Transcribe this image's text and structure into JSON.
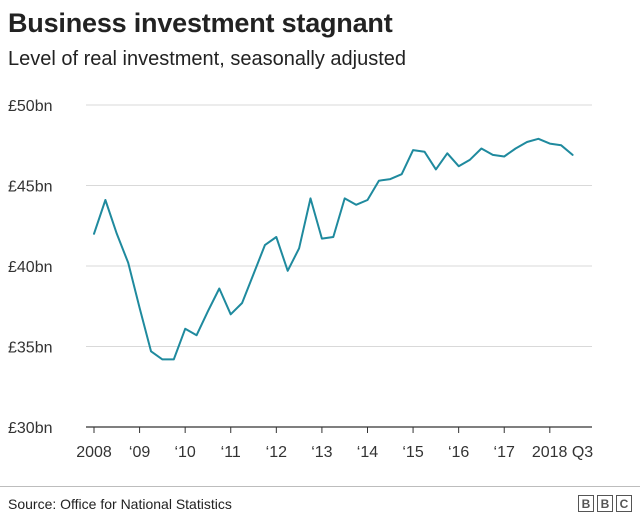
{
  "title": "Business investment stagnant",
  "subtitle": "Level of real investment, seasonally adjusted",
  "source": "Source: Office for National Statistics",
  "logo": {
    "letters": [
      "B",
      "B",
      "C"
    ],
    "color": "#555555"
  },
  "chart_data": {
    "type": "line",
    "title": "Business investment stagnant",
    "subtitle": "Level of real investment, seasonally adjusted",
    "xlabel": "",
    "ylabel": "",
    "grid": true,
    "legend": "none",
    "ylim": [
      30,
      50
    ],
    "yticks": [
      {
        "value": 50,
        "label": "£50bn"
      },
      {
        "value": 45,
        "label": "£45bn"
      },
      {
        "value": 40,
        "label": "£40bn"
      },
      {
        "value": 35,
        "label": "£35bn"
      },
      {
        "value": 30,
        "label": "£30bn"
      }
    ],
    "xlim": [
      2008,
      2018.75
    ],
    "xticks": [
      {
        "value": 2008,
        "label": "2008"
      },
      {
        "value": 2009,
        "label": "‘09"
      },
      {
        "value": 2010,
        "label": "‘10"
      },
      {
        "value": 2011,
        "label": "‘11"
      },
      {
        "value": 2012,
        "label": "‘12"
      },
      {
        "value": 2013,
        "label": "‘13"
      },
      {
        "value": 2014,
        "label": "‘14"
      },
      {
        "value": 2015,
        "label": "‘15"
      },
      {
        "value": 2016,
        "label": "‘16"
      },
      {
        "value": 2017,
        "label": "‘17"
      },
      {
        "value": 2018,
        "label": "2018 Q3"
      }
    ],
    "line_color": "#1f8a9e",
    "series": [
      {
        "name": "",
        "x": [
          "2008 Q1",
          "2008 Q2",
          "2008 Q3",
          "2008 Q4",
          "2009 Q1",
          "2009 Q2",
          "2009 Q3",
          "2009 Q4",
          "2010 Q1",
          "2010 Q2",
          "2010 Q3",
          "2010 Q4",
          "2011 Q1",
          "2011 Q2",
          "2011 Q3",
          "2011 Q4",
          "2012 Q1",
          "2012 Q2",
          "2012 Q3",
          "2012 Q4",
          "2013 Q1",
          "2013 Q2",
          "2013 Q3",
          "2013 Q4",
          "2014 Q1",
          "2014 Q2",
          "2014 Q3",
          "2014 Q4",
          "2015 Q1",
          "2015 Q2",
          "2015 Q3",
          "2015 Q4",
          "2016 Q1",
          "2016 Q2",
          "2016 Q3",
          "2016 Q4",
          "2017 Q1",
          "2017 Q2",
          "2017 Q3",
          "2017 Q4",
          "2018 Q1",
          "2018 Q2",
          "2018 Q3"
        ],
        "values": [
          42.0,
          44.1,
          42.0,
          40.2,
          37.4,
          34.7,
          34.2,
          34.2,
          36.1,
          35.7,
          37.2,
          38.6,
          37.0,
          37.7,
          39.5,
          41.3,
          41.8,
          39.7,
          41.1,
          44.2,
          41.7,
          41.8,
          44.2,
          43.8,
          44.1,
          45.3,
          45.4,
          45.7,
          47.2,
          47.1,
          46.0,
          47.0,
          46.2,
          46.6,
          47.3,
          46.9,
          46.8,
          47.3,
          47.7,
          47.9,
          47.6,
          47.5,
          46.9
        ]
      }
    ]
  }
}
